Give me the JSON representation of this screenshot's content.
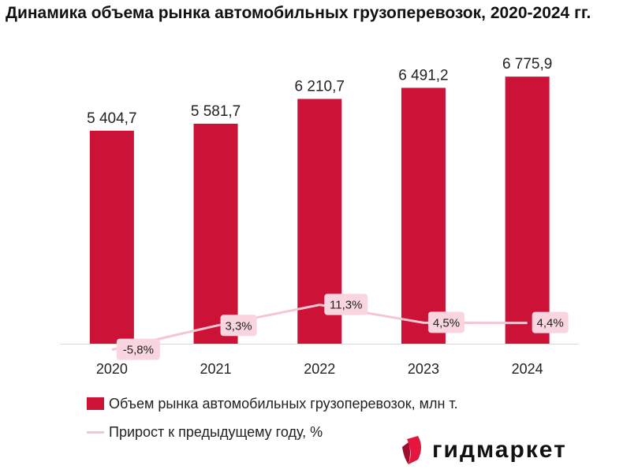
{
  "chart_data": {
    "type": "bar",
    "title": "Динамика объема рынка автомобильных грузоперевозок, 2020-2024 гг.",
    "categories": [
      "2020",
      "2021",
      "2022",
      "2023",
      "2024"
    ],
    "series": [
      {
        "name": "Объем рынка автомобильных грузоперевозок, млн т.",
        "type": "bar",
        "values": [
          5404.7,
          5581.7,
          6210.7,
          6491.2,
          6775.9
        ],
        "labels": [
          "5 404,7",
          "5 581,7",
          "6 210,7",
          "6 491,2",
          "6 775,9"
        ],
        "color": "#cc1236"
      },
      {
        "name": "Прирост к предыдущему году, %",
        "type": "line",
        "axis": "secondary",
        "values": [
          -5.8,
          3.3,
          11.3,
          4.5,
          4.4
        ],
        "labels": [
          "-5,8%",
          "3,3%",
          "11,3%",
          "4,5%",
          "4,4%"
        ],
        "color": "#f3c6d2"
      }
    ],
    "ylim": [
      0,
      7000
    ],
    "grid": false,
    "legend": "bottom"
  },
  "logo": {
    "text": "гидмаркет"
  }
}
